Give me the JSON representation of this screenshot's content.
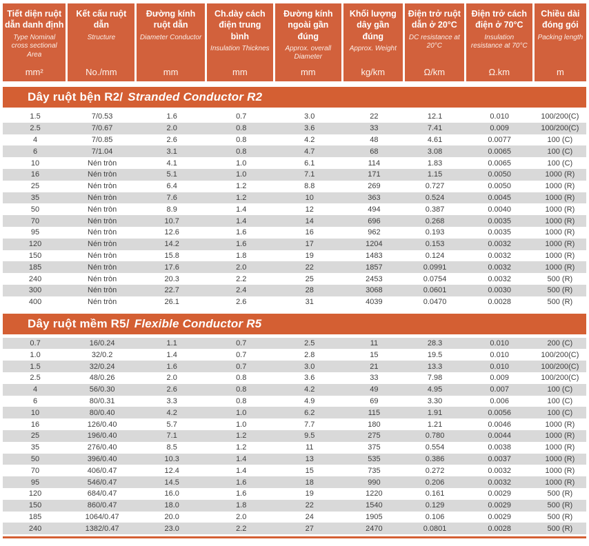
{
  "colors": {
    "header_orange": "#d2613c",
    "bar_orange": "#d45f33",
    "row_gray": "#d9d9d9",
    "row_text": "#3d3d3d",
    "header_text": "#ffffff"
  },
  "header": {
    "columns": [
      {
        "vi": "Tiết diện ruột dẫn danh định",
        "en": "Type Nominal cross sectional Area",
        "unit": "mm²"
      },
      {
        "vi": "Kết cấu ruột dẫn",
        "en": "Structure",
        "unit": "No./mm"
      },
      {
        "vi": "Đường kính ruột dẫn",
        "en": "Diameter Conductor",
        "unit": "mm"
      },
      {
        "vi": "Ch.dày cách điện trung bình",
        "en": "Insulation Thicknes",
        "unit": "mm"
      },
      {
        "vi": "Đường kính ngoài gần đúng",
        "en": "Approx. overall Diameter",
        "unit": "mm"
      },
      {
        "vi": "Khối lượng dây gần đúng",
        "en": "Approx. Weight",
        "unit": "kg/km"
      },
      {
        "vi": "Điện trở ruột dẫn ở 20°C",
        "en": "DC resistance at 20°C",
        "unit": "Ω/km"
      },
      {
        "vi": "Điện trở cách điện ở 70°C",
        "en": "Insulation resistance at 70°C",
        "unit": "Ω.km"
      },
      {
        "vi": "Chiều dài đóng gói",
        "en": "Packing length",
        "unit": "m"
      }
    ]
  },
  "sections": [
    {
      "title_vi": "Dây ruột bện R2/",
      "title_en": "Stranded Conductor R2",
      "first_row_shaded": false,
      "rows": [
        [
          "1.5",
          "7/0.53",
          "1.6",
          "0.7",
          "3.0",
          "22",
          "12.1",
          "0.010",
          "100/200(C)"
        ],
        [
          "2.5",
          "7/0.67",
          "2.0",
          "0.8",
          "3.6",
          "33",
          "7.41",
          "0.009",
          "100/200(C)"
        ],
        [
          "4",
          "7/0.85",
          "2.6",
          "0.8",
          "4.2",
          "48",
          "4.61",
          "0.0077",
          "100 (C)"
        ],
        [
          "6",
          "7/1.04",
          "3.1",
          "0.8",
          "4.7",
          "68",
          "3.08",
          "0.0065",
          "100 (C)"
        ],
        [
          "10",
          "Nén tròn",
          "4.1",
          "1.0",
          "6.1",
          "114",
          "1.83",
          "0.0065",
          "100 (C)"
        ],
        [
          "16",
          "Nén tròn",
          "5.1",
          "1.0",
          "7.1",
          "171",
          "1.15",
          "0.0050",
          "1000 (R)"
        ],
        [
          "25",
          "Nén tròn",
          "6.4",
          "1.2",
          "8.8",
          "269",
          "0.727",
          "0.0050",
          "1000 (R)"
        ],
        [
          "35",
          "Nén tròn",
          "7.6",
          "1.2",
          "10",
          "363",
          "0.524",
          "0.0045",
          "1000 (R)"
        ],
        [
          "50",
          "Nén tròn",
          "8.9",
          "1.4",
          "12",
          "494",
          "0.387",
          "0.0040",
          "1000 (R)"
        ],
        [
          "70",
          "Nén tròn",
          "10.7",
          "1.4",
          "14",
          "696",
          "0.268",
          "0.0035",
          "1000 (R)"
        ],
        [
          "95",
          "Nén tròn",
          "12.6",
          "1.6",
          "16",
          "962",
          "0.193",
          "0.0035",
          "1000 (R)"
        ],
        [
          "120",
          "Nén tròn",
          "14.2",
          "1.6",
          "17",
          "1204",
          "0.153",
          "0.0032",
          "1000 (R)"
        ],
        [
          "150",
          "Nén tròn",
          "15.8",
          "1.8",
          "19",
          "1483",
          "0.124",
          "0.0032",
          "1000 (R)"
        ],
        [
          "185",
          "Nén tròn",
          "17.6",
          "2.0",
          "22",
          "1857",
          "0.0991",
          "0.0032",
          "1000 (R)"
        ],
        [
          "240",
          "Nén tròn",
          "20.3",
          "2.2",
          "25",
          "2453",
          "0.0754",
          "0.0032",
          "500 (R)"
        ],
        [
          "300",
          "Nén tròn",
          "22.7",
          "2.4",
          "28",
          "3068",
          "0.0601",
          "0.0030",
          "500 (R)"
        ],
        [
          "400",
          "Nén tròn",
          "26.1",
          "2.6",
          "31",
          "4039",
          "0.0470",
          "0.0028",
          "500 (R)"
        ]
      ]
    },
    {
      "title_vi": "Dây ruột mềm R5/",
      "title_en": "Flexible Conductor R5",
      "first_row_shaded": true,
      "rows": [
        [
          "0.7",
          "16/0.24",
          "1.1",
          "0.7",
          "2.5",
          "11",
          "28.3",
          "0.010",
          "200 (C)"
        ],
        [
          "1.0",
          "32/0.2",
          "1.4",
          "0.7",
          "2.8",
          "15",
          "19.5",
          "0.010",
          "100/200(C)"
        ],
        [
          "1.5",
          "32/0.24",
          "1.6",
          "0.7",
          "3.0",
          "21",
          "13.3",
          "0.010",
          "100/200(C)"
        ],
        [
          "2.5",
          "48/0.26",
          "2.0",
          "0.8",
          "3.6",
          "33",
          "7.98",
          "0.009",
          "100/200(C)"
        ],
        [
          "4",
          "56/0.30",
          "2.6",
          "0.8",
          "4.2",
          "49",
          "4.95",
          "0.007",
          "100 (C)"
        ],
        [
          "6",
          "80/0.31",
          "3.3",
          "0.8",
          "4.9",
          "69",
          "3.30",
          "0.006",
          "100 (C)"
        ],
        [
          "10",
          "80/0.40",
          "4.2",
          "1.0",
          "6.2",
          "115",
          "1.91",
          "0.0056",
          "100 (C)"
        ],
        [
          "16",
          "126/0.40",
          "5.7",
          "1.0",
          "7.7",
          "180",
          "1.21",
          "0.0046",
          "1000 (R)"
        ],
        [
          "25",
          "196/0.40",
          "7.1",
          "1.2",
          "9.5",
          "275",
          "0.780",
          "0.0044",
          "1000 (R)"
        ],
        [
          "35",
          "276/0.40",
          "8.5",
          "1.2",
          "11",
          "375",
          "0.554",
          "0.0038",
          "1000 (R)"
        ],
        [
          "50",
          "396/0.40",
          "10.3",
          "1.4",
          "13",
          "535",
          "0.386",
          "0.0037",
          "1000 (R)"
        ],
        [
          "70",
          "406/0.47",
          "12.4",
          "1.4",
          "15",
          "735",
          "0.272",
          "0.0032",
          "1000 (R)"
        ],
        [
          "95",
          "546/0.47",
          "14.5",
          "1.6",
          "18",
          "990",
          "0.206",
          "0.0032",
          "1000 (R)"
        ],
        [
          "120",
          "684/0.47",
          "16.0",
          "1.6",
          "19",
          "1220",
          "0.161",
          "0.0029",
          "500 (R)"
        ],
        [
          "150",
          "860/0.47",
          "18.0",
          "1.8",
          "22",
          "1540",
          "0.129",
          "0.0029",
          "500 (R)"
        ],
        [
          "185",
          "1064/0.47",
          "20.0",
          "2.0",
          "24",
          "1905",
          "0.106",
          "0.0029",
          "500 (R)"
        ],
        [
          "240",
          "1382/0.47",
          "23.0",
          "2.2",
          "27",
          "2470",
          "0.0801",
          "0.0028",
          "500 (R)"
        ]
      ]
    }
  ]
}
